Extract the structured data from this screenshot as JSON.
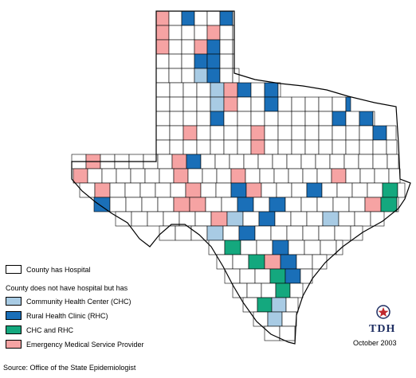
{
  "colors": {
    "hospital": "#ffffff",
    "chc": "#a8cbe4",
    "rhc": "#1a6fb8",
    "chc_rhc": "#14a87e",
    "ems": "#f6a3a3",
    "border": "#000000"
  },
  "legend": {
    "hospital_label": "County has Hospital",
    "subheading": "County does not have hospital but has",
    "items": [
      {
        "key": "chc",
        "label": "Community Health Center (CHC)"
      },
      {
        "key": "rhc",
        "label": "Rural Health Clinic (RHC)"
      },
      {
        "key": "chc_rhc",
        "label": "CHC and RHC"
      },
      {
        "key": "ems",
        "label": "Emergency Medical Service Provider"
      }
    ]
  },
  "logo": {
    "text": "TDH",
    "icon": "star-seal-icon"
  },
  "date": "October 2003",
  "source": "Source:  Office of the State Epidemiologist"
}
